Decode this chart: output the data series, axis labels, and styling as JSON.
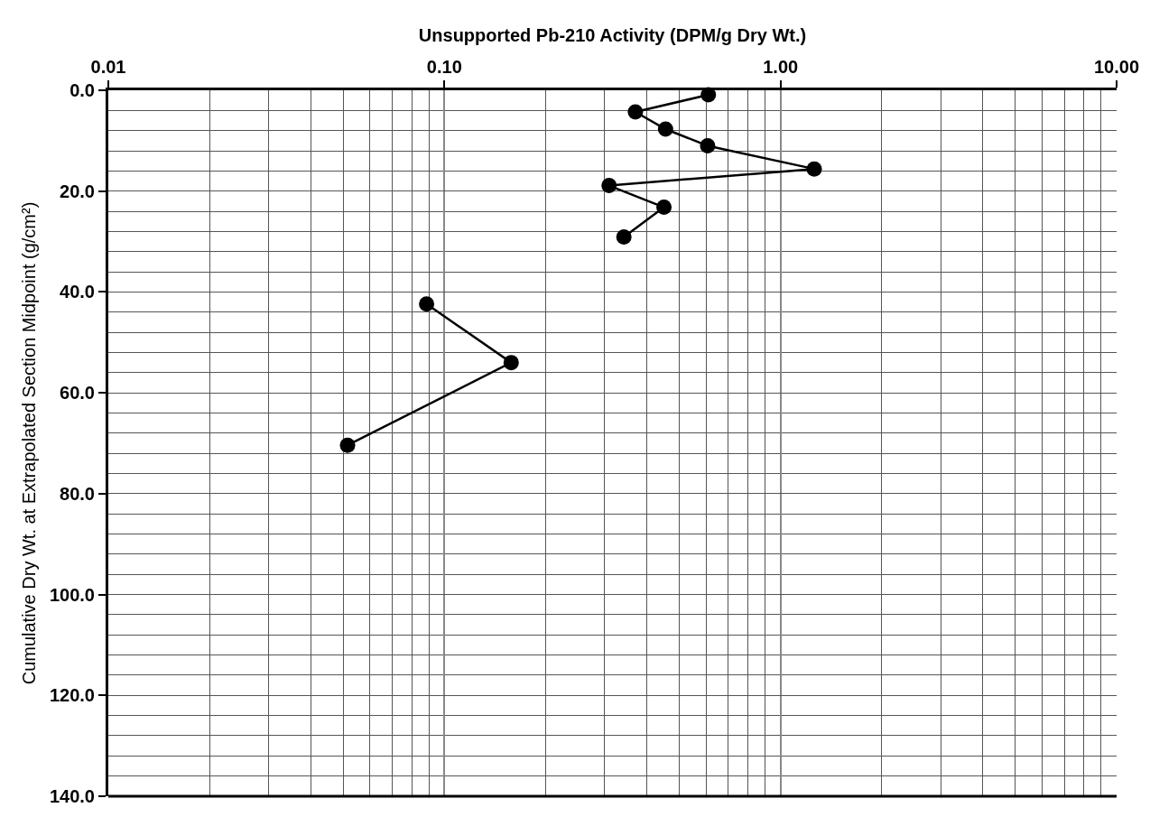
{
  "chart_data": {
    "type": "line",
    "xlabel": "Unsupported Pb-210 Activity (DPM/g Dry Wt.)",
    "ylabel": "Cumulative Dry Wt. at Extrapolated Section Midpoint (g/cm²)",
    "log": "x",
    "xlim": [
      0.01,
      10
    ],
    "xticks": [
      {
        "value": 0.01,
        "label": "0.01"
      },
      {
        "value": 0.1,
        "label": "0.10"
      },
      {
        "value": 1,
        "label": "1.00"
      },
      {
        "value": 10,
        "label": "10.00"
      }
    ],
    "ylim": [
      140,
      0
    ],
    "yticks": [
      {
        "value": 0,
        "label": "0.0"
      },
      {
        "value": 20,
        "label": "20.0"
      },
      {
        "value": 40,
        "label": "40.0"
      },
      {
        "value": 60,
        "label": "60.0"
      },
      {
        "value": 80,
        "label": "80.0"
      },
      {
        "value": 100,
        "label": "100.0"
      },
      {
        "value": 120,
        "label": "120.0"
      },
      {
        "value": 140,
        "label": "140.0"
      }
    ],
    "grid": true,
    "marker": "circle",
    "line_style": "solid",
    "series": [
      {
        "color": "#000000",
        "x": [
          0.61,
          0.37,
          0.455,
          0.607,
          1.26,
          0.309,
          0.45,
          0.342,
          null,
          0.0885,
          0.158,
          0.0515
        ],
        "values": [
          0.9,
          4.3,
          7.7,
          11.0,
          15.6,
          18.9,
          23.2,
          29.1,
          null,
          42.4,
          54.0,
          70.4
        ]
      }
    ]
  }
}
